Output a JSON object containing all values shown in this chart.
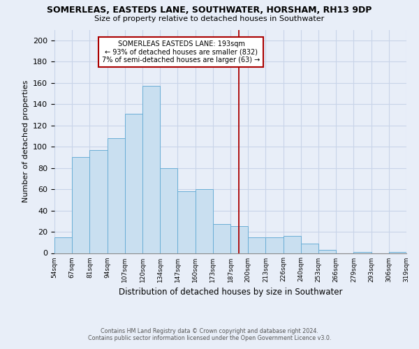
{
  "title": "SOMERLEAS, EASTEDS LANE, SOUTHWATER, HORSHAM, RH13 9DP",
  "subtitle": "Size of property relative to detached houses in Southwater",
  "xlabel": "Distribution of detached houses by size in Southwater",
  "ylabel": "Number of detached properties",
  "bar_labels": [
    "54sqm",
    "67sqm",
    "81sqm",
    "94sqm",
    "107sqm",
    "120sqm",
    "134sqm",
    "147sqm",
    "160sqm",
    "173sqm",
    "187sqm",
    "200sqm",
    "213sqm",
    "226sqm",
    "240sqm",
    "253sqm",
    "266sqm",
    "279sqm",
    "293sqm",
    "306sqm",
    "319sqm"
  ],
  "bar_values": [
    15,
    90,
    97,
    108,
    131,
    157,
    80,
    58,
    60,
    27,
    25,
    15,
    15,
    16,
    9,
    3,
    0,
    1,
    0,
    1
  ],
  "bar_color": "#c9dff0",
  "bar_edge_color": "#6aaed6",
  "vline_color": "#aa0000",
  "annotation_title": "SOMERLEAS EASTEDS LANE: 193sqm",
  "annotation_line1": "← 93% of detached houses are smaller (832)",
  "annotation_line2": "7% of semi-detached houses are larger (63) →",
  "annotation_box_color": "#ffffff",
  "annotation_box_edge": "#aa0000",
  "ylim": [
    0,
    210
  ],
  "yticks": [
    0,
    20,
    40,
    60,
    80,
    100,
    120,
    140,
    160,
    180,
    200
  ],
  "footnote1": "Contains HM Land Registry data © Crown copyright and database right 2024.",
  "footnote2": "Contains public sector information licensed under the Open Government Licence v3.0.",
  "bg_color": "#e8eef8",
  "grid_color": "#c8d4e8"
}
